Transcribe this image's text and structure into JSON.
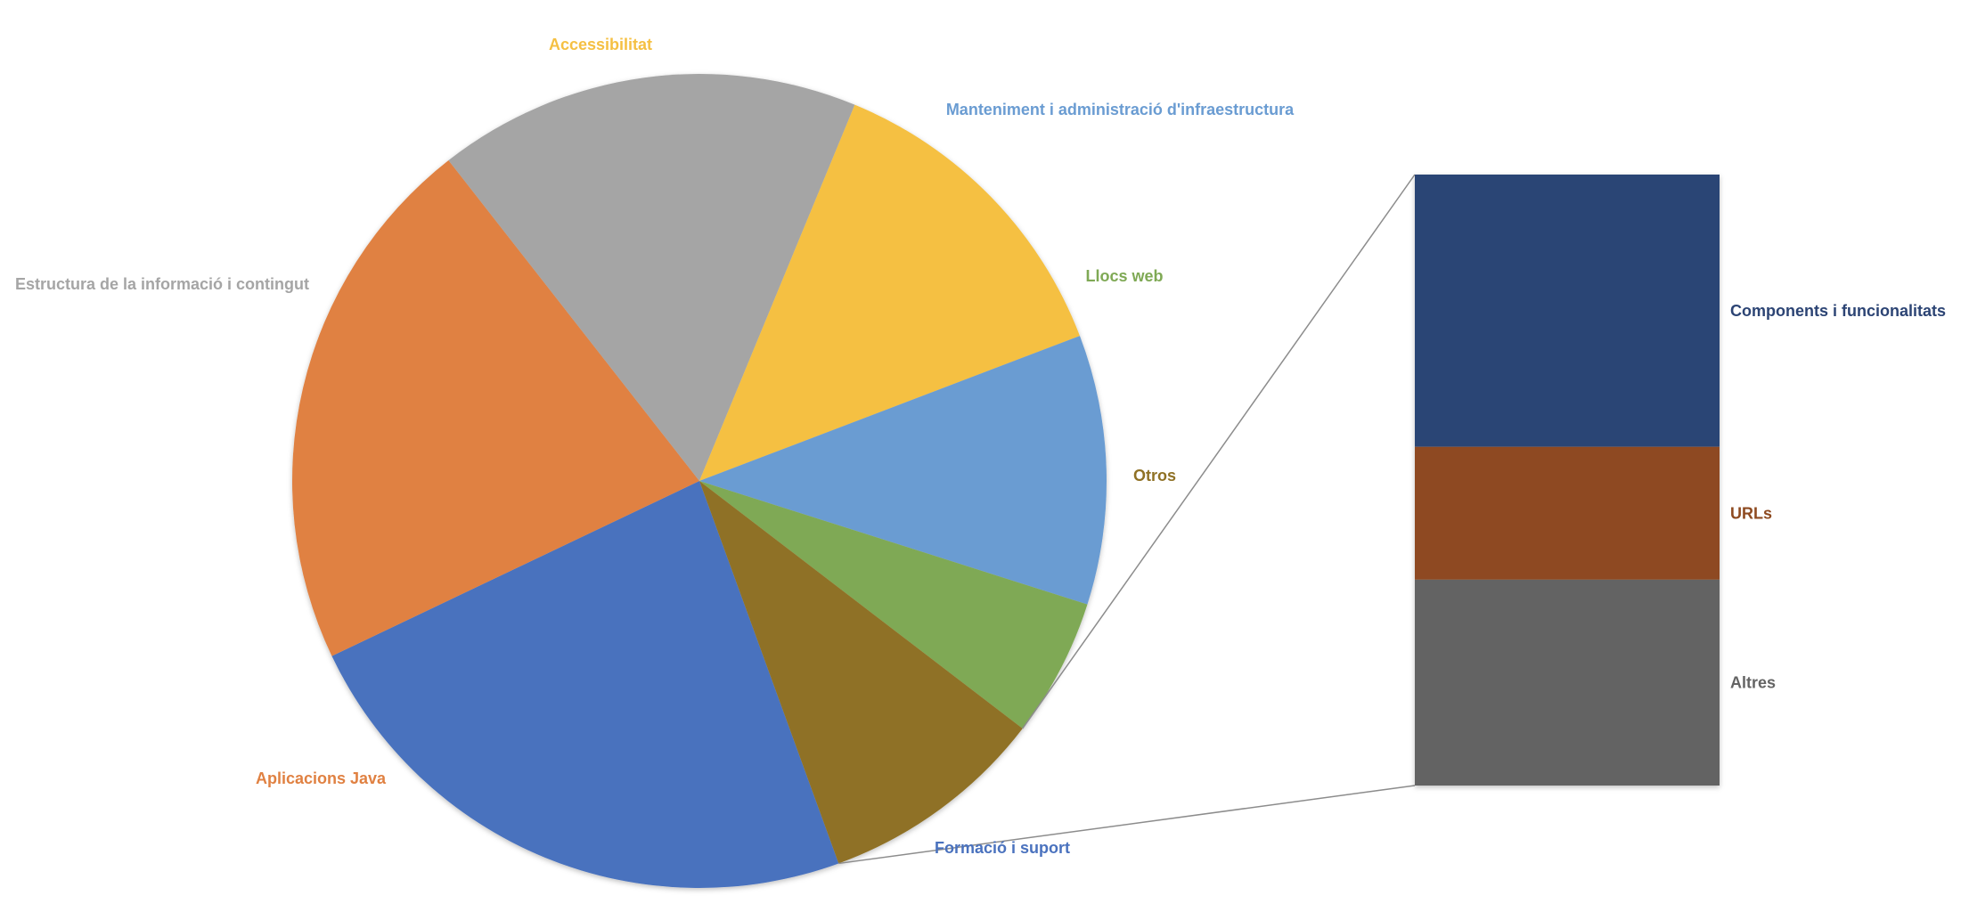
{
  "chart_data": {
    "type": "pie",
    "subtype": "bar-of-pie",
    "title": "",
    "slices": [
      {
        "label": "Formació i suport",
        "value": 23.9,
        "color": "#4A72BE"
      },
      {
        "label": "Aplicacions Java",
        "value": 21.9,
        "color": "#E08142"
      },
      {
        "label": "Estructura de la informació i contingut",
        "value": 17.1,
        "color": "#A5A5A5"
      },
      {
        "label": "Accessibilitat",
        "value": 13.2,
        "color": "#F5C043"
      },
      {
        "label": "Manteniment i administració d'infraestructura",
        "value": 10.9,
        "color": "#6A9CD2"
      },
      {
        "label": "Llocs web",
        "value": 5.6,
        "color": "#7FA955"
      },
      {
        "label": "Otros",
        "value": 9.2,
        "color": "#8F7125"
      }
    ],
    "breakdown_of": "Otros",
    "breakdown": [
      {
        "label": "Components i funcionalitats",
        "value": 4.1,
        "color": "#2C4474"
      },
      {
        "label": "URLs",
        "value": 2.0,
        "color": "#8E4A20"
      },
      {
        "label": "Altres",
        "value": 3.1,
        "color": "#646464"
      }
    ]
  }
}
